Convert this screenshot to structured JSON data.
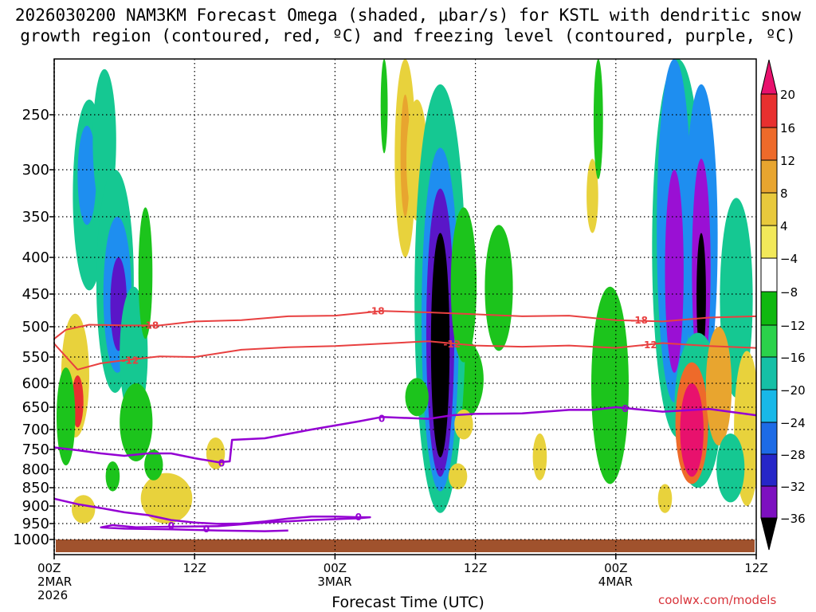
{
  "title_line1": "2026030200 NAM3KM Forecast Omega (shaded, μbar/s) for KSTL with dendritic snow",
  "title_line2": "growth region (contoured, red, ºC) and freezing level (contoured, purple, ºC)",
  "credit": "coolwx.com/models",
  "chart_data": {
    "type": "heatmap",
    "title": "2026030200 NAM3KM Forecast Omega (shaded, μbar/s) for KSTL with dendritic snow growth region (contoured, red, ºC) and freezing level (contoured, purple, ºC)",
    "xlabel": "Forecast Time (UTC)",
    "ylabel": "",
    "xlim": [
      0,
      60
    ],
    "ylim": [
      1050,
      195
    ],
    "y_ticks": [
      250,
      300,
      350,
      400,
      450,
      500,
      550,
      600,
      650,
      700,
      750,
      800,
      850,
      900,
      950,
      1000
    ],
    "x_ticks": [
      {
        "hour": 0,
        "label": "00Z",
        "date": "2MAR",
        "year": "2026"
      },
      {
        "hour": 12,
        "label": "12Z",
        "date": "",
        "year": ""
      },
      {
        "hour": 24,
        "label": "00Z",
        "date": "3MAR",
        "year": ""
      },
      {
        "hour": 36,
        "label": "12Z",
        "date": "",
        "year": ""
      },
      {
        "hour": 48,
        "label": "00Z",
        "date": "4MAR",
        "year": ""
      },
      {
        "hour": 60,
        "label": "12Z",
        "date": "",
        "year": ""
      }
    ],
    "colorbar": {
      "labels": [
        "20",
        "16",
        "12",
        "8",
        "4",
        "−4",
        "−8",
        "−12",
        "−16",
        "−20",
        "−24",
        "−28",
        "−32",
        "−36"
      ],
      "colors": [
        "#e8116d",
        "#e8302f",
        "#ee6a2a",
        "#e8a52f",
        "#e8c93c",
        "#f2e95a",
        "#ffffff",
        "#0fb80f",
        "#2bd24b",
        "#15c0a6",
        "#18b8e8",
        "#1d6be6",
        "#2626c8",
        "#7d10c0",
        "#a010d8",
        "#a0a0a0",
        "#000000"
      ]
    },
    "omega_cells": [
      {
        "t": 3.0,
        "p": 340,
        "dt": 1.4,
        "dp": 105,
        "value": -10
      },
      {
        "t": 2.8,
        "p": 310,
        "dt": 0.8,
        "dp": 50,
        "value": -16
      },
      {
        "t": 4.3,
        "p": 275,
        "dt": 1.0,
        "dp": 70,
        "value": -8
      },
      {
        "t": 5.2,
        "p": 460,
        "dt": 1.6,
        "dp": 160,
        "value": -10
      },
      {
        "t": 5.4,
        "p": 465,
        "dt": 1.2,
        "dp": 115,
        "value": -18
      },
      {
        "t": 5.5,
        "p": 470,
        "dt": 0.7,
        "dp": 70,
        "value": -27
      },
      {
        "t": 6.8,
        "p": 560,
        "dt": 1.2,
        "dp": 120,
        "value": -8
      },
      {
        "t": 1.8,
        "p": 600,
        "dt": 1.2,
        "dp": 120,
        "value": 6
      },
      {
        "t": 2.0,
        "p": 640,
        "dt": 0.5,
        "dp": 55,
        "value": 16
      },
      {
        "t": 1.0,
        "p": 680,
        "dt": 0.8,
        "dp": 110,
        "value": -6
      },
      {
        "t": 7.8,
        "p": 430,
        "dt": 0.6,
        "dp": 90,
        "value": -6
      },
      {
        "t": 7.0,
        "p": 690,
        "dt": 1.4,
        "dp": 90,
        "value": -6
      },
      {
        "t": 9.6,
        "p": 880,
        "dt": 2.2,
        "dp": 70,
        "value": 6
      },
      {
        "t": 13.8,
        "p": 760,
        "dt": 0.8,
        "dp": 40,
        "value": 6
      },
      {
        "t": 5.0,
        "p": 820,
        "dt": 0.6,
        "dp": 40,
        "value": -6
      },
      {
        "t": 8.5,
        "p": 790,
        "dt": 0.8,
        "dp": 40,
        "value": -6
      },
      {
        "t": 2.5,
        "p": 910,
        "dt": 1.0,
        "dp": 40,
        "value": 6
      },
      {
        "t": 30.0,
        "p": 280,
        "dt": 0.9,
        "dp": 120,
        "value": 6
      },
      {
        "t": 30.0,
        "p": 290,
        "dt": 0.4,
        "dp": 60,
        "value": 10
      },
      {
        "t": 31.0,
        "p": 295,
        "dt": 0.9,
        "dp": 60,
        "value": 6
      },
      {
        "t": 28.2,
        "p": 240,
        "dt": 0.3,
        "dp": 45,
        "value": -6
      },
      {
        "t": 34.5,
        "p": 600,
        "dt": 2.2,
        "dp": 85,
        "value": -6
      },
      {
        "t": 33.0,
        "p": 570,
        "dt": 2.2,
        "dp": 350,
        "value": -10
      },
      {
        "t": 33.0,
        "p": 570,
        "dt": 1.6,
        "dp": 290,
        "value": -16
      },
      {
        "t": 33.0,
        "p": 570,
        "dt": 1.2,
        "dp": 250,
        "value": -24
      },
      {
        "t": 33.0,
        "p": 570,
        "dt": 0.8,
        "dp": 200,
        "value": -40
      },
      {
        "t": 35.0,
        "p": 450,
        "dt": 1.1,
        "dp": 110,
        "value": -6
      },
      {
        "t": 38.0,
        "p": 450,
        "dt": 1.2,
        "dp": 90,
        "value": -6
      },
      {
        "t": 31.0,
        "p": 630,
        "dt": 1.0,
        "dp": 40,
        "value": -6
      },
      {
        "t": 35.0,
        "p": 690,
        "dt": 0.8,
        "dp": 35,
        "value": 6
      },
      {
        "t": 34.5,
        "p": 820,
        "dt": 0.8,
        "dp": 35,
        "value": 6
      },
      {
        "t": 41.5,
        "p": 770,
        "dt": 0.6,
        "dp": 60,
        "value": 6
      },
      {
        "t": 46.0,
        "p": 330,
        "dt": 0.5,
        "dp": 40,
        "value": 6
      },
      {
        "t": 46.5,
        "p": 250,
        "dt": 0.4,
        "dp": 60,
        "value": -6
      },
      {
        "t": 47.5,
        "p": 640,
        "dt": 1.6,
        "dp": 200,
        "value": -6
      },
      {
        "t": 53.3,
        "p": 400,
        "dt": 2.2,
        "dp": 320,
        "value": -10
      },
      {
        "t": 53.0,
        "p": 410,
        "dt": 1.5,
        "dp": 230,
        "value": -18
      },
      {
        "t": 53.0,
        "p": 440,
        "dt": 0.8,
        "dp": 140,
        "value": -28
      },
      {
        "t": 55.3,
        "p": 420,
        "dt": 1.4,
        "dp": 200,
        "value": -18
      },
      {
        "t": 55.3,
        "p": 440,
        "dt": 0.8,
        "dp": 150,
        "value": -28
      },
      {
        "t": 55.3,
        "p": 460,
        "dt": 0.4,
        "dp": 90,
        "value": -40
      },
      {
        "t": 58.3,
        "p": 480,
        "dt": 1.4,
        "dp": 150,
        "value": -8
      },
      {
        "t": 55.0,
        "p": 680,
        "dt": 2.0,
        "dp": 170,
        "value": -8
      },
      {
        "t": 54.5,
        "p": 700,
        "dt": 1.4,
        "dp": 140,
        "value": 12
      },
      {
        "t": 54.5,
        "p": 710,
        "dt": 1.0,
        "dp": 110,
        "value": 20
      },
      {
        "t": 56.8,
        "p": 620,
        "dt": 1.1,
        "dp": 120,
        "value": 8
      },
      {
        "t": 59.2,
        "p": 720,
        "dt": 1.1,
        "dp": 180,
        "value": 6
      },
      {
        "t": 57.8,
        "p": 800,
        "dt": 1.2,
        "dp": 90,
        "value": -10
      },
      {
        "t": 52.2,
        "p": 880,
        "dt": 0.6,
        "dp": 40,
        "value": 6
      }
    ],
    "dgz_contours": [
      {
        "label": "-18",
        "color": "#e84040",
        "points": [
          [
            0,
            520
          ],
          [
            1,
            505
          ],
          [
            3,
            497
          ],
          [
            6,
            498
          ],
          [
            9,
            498
          ],
          [
            12,
            492
          ],
          [
            16,
            490
          ],
          [
            20,
            484
          ],
          [
            24,
            483
          ],
          [
            28,
            476
          ],
          [
            32,
            478
          ],
          [
            36,
            481
          ],
          [
            40,
            484
          ],
          [
            44,
            483
          ],
          [
            48,
            490
          ],
          [
            52,
            492
          ],
          [
            56,
            486
          ],
          [
            60,
            484
          ]
        ],
        "label_positions": [
          [
            8.2,
            498
          ],
          [
            27.5,
            476
          ],
          [
            50.0,
            490
          ]
        ]
      },
      {
        "label": "-12",
        "color": "#e84040",
        "points": [
          [
            0,
            528
          ],
          [
            2,
            574
          ],
          [
            4,
            562
          ],
          [
            6,
            556
          ],
          [
            9,
            549
          ],
          [
            12,
            550
          ],
          [
            16,
            538
          ],
          [
            20,
            534
          ],
          [
            24,
            532
          ],
          [
            28,
            528
          ],
          [
            32,
            524
          ],
          [
            36,
            531
          ],
          [
            40,
            533
          ],
          [
            44,
            531
          ],
          [
            48,
            535
          ],
          [
            52,
            527
          ],
          [
            56,
            532
          ],
          [
            60,
            535
          ]
        ],
        "label_positions": [
          [
            6.5,
            557
          ],
          [
            34.0,
            529
          ],
          [
            50.8,
            530
          ]
        ]
      }
    ],
    "freezing_contours": [
      {
        "label": "0",
        "color": "#9400d3",
        "points": [
          [
            0,
            745
          ],
          [
            2,
            752
          ],
          [
            4,
            760
          ],
          [
            6,
            766
          ],
          [
            8,
            760
          ],
          [
            10,
            760
          ],
          [
            12,
            772
          ],
          [
            14,
            782
          ],
          [
            15,
            780
          ],
          [
            15.2,
            726
          ],
          [
            18,
            722
          ],
          [
            22,
            700
          ],
          [
            26,
            682
          ],
          [
            28,
            672
          ],
          [
            32,
            676
          ],
          [
            34,
            668
          ],
          [
            36,
            665
          ],
          [
            40,
            664
          ],
          [
            44,
            656
          ],
          [
            46,
            656
          ],
          [
            48,
            650
          ],
          [
            52,
            660
          ],
          [
            56,
            654
          ],
          [
            60,
            668
          ]
        ],
        "label_positions": [
          [
            14.3,
            785
          ],
          [
            28.0,
            676
          ],
          [
            48.8,
            654
          ]
        ]
      },
      {
        "label": "0",
        "color": "#9400d3",
        "points": [
          [
            0,
            880
          ],
          [
            2,
            895
          ],
          [
            4,
            906
          ],
          [
            6,
            918
          ],
          [
            8,
            926
          ],
          [
            10,
            940
          ],
          [
            12,
            947
          ],
          [
            14,
            951
          ],
          [
            16,
            950
          ],
          [
            18,
            944
          ],
          [
            20,
            936
          ],
          [
            22,
            930
          ],
          [
            24,
            930
          ],
          [
            26,
            932
          ],
          [
            27,
            932
          ],
          [
            26,
            935
          ],
          [
            22,
            940
          ],
          [
            18,
            947
          ],
          [
            14,
            958
          ],
          [
            10,
            960
          ],
          [
            7,
            962
          ],
          [
            5,
            955
          ],
          [
            4,
            962
          ],
          [
            6,
            966
          ],
          [
            10,
            968
          ],
          [
            14,
            972
          ],
          [
            18,
            974
          ],
          [
            20,
            972
          ]
        ],
        "label_positions": [
          [
            26.0,
            932
          ],
          [
            10.0,
            958
          ],
          [
            13.0,
            968
          ]
        ]
      }
    ],
    "terrain_pressure_mb": 1000
  }
}
